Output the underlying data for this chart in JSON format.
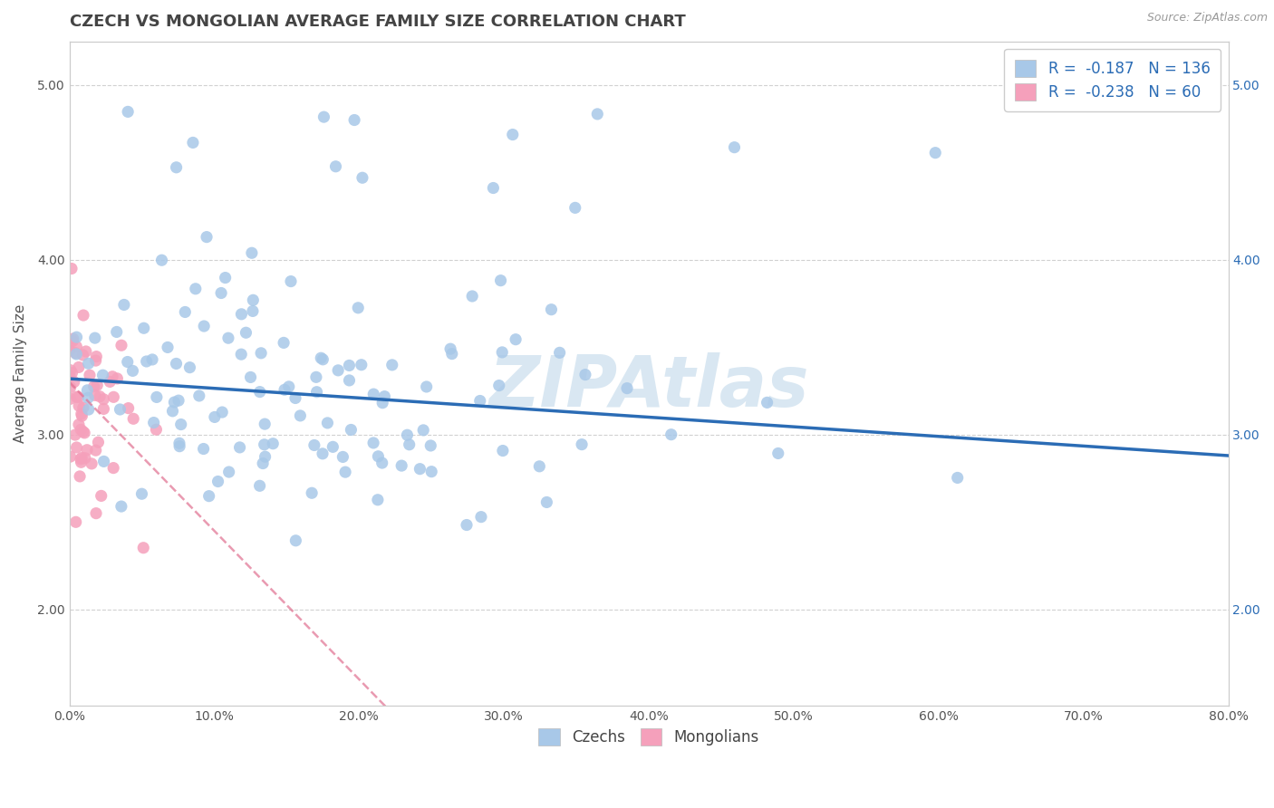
{
  "title": "CZECH VS MONGOLIAN AVERAGE FAMILY SIZE CORRELATION CHART",
  "source": "Source: ZipAtlas.com",
  "ylabel": "Average Family Size",
  "xmin": 0.0,
  "xmax": 0.8,
  "ymin": 1.45,
  "ymax": 5.25,
  "yticks": [
    2.0,
    3.0,
    4.0,
    5.0
  ],
  "xticks": [
    0.0,
    0.1,
    0.2,
    0.3,
    0.4,
    0.5,
    0.6,
    0.7,
    0.8
  ],
  "xtick_labels": [
    "0.0%",
    "10.0%",
    "20.0%",
    "30.0%",
    "40.0%",
    "50.0%",
    "60.0%",
    "70.0%",
    "80.0%"
  ],
  "czech_color": "#a8c8e8",
  "mongolian_color": "#f5a0bb",
  "czech_line_color": "#2b6cb5",
  "mongolian_line_color": "#e07090",
  "czech_R": -0.187,
  "czech_N": 136,
  "mongolian_R": -0.238,
  "mongolian_N": 60,
  "czech_intercept": 3.32,
  "czech_slope": -0.55,
  "mongolian_intercept": 3.3,
  "mongolian_slope": -8.5,
  "watermark": "ZIPAtlas",
  "watermark_color": "#c0d8ea",
  "legend_R_color": "#2b6cb5",
  "background_color": "#ffffff",
  "grid_color": "#cccccc",
  "title_fontsize": 13,
  "axis_label_fontsize": 11,
  "tick_fontsize": 10,
  "legend_fontsize": 12
}
